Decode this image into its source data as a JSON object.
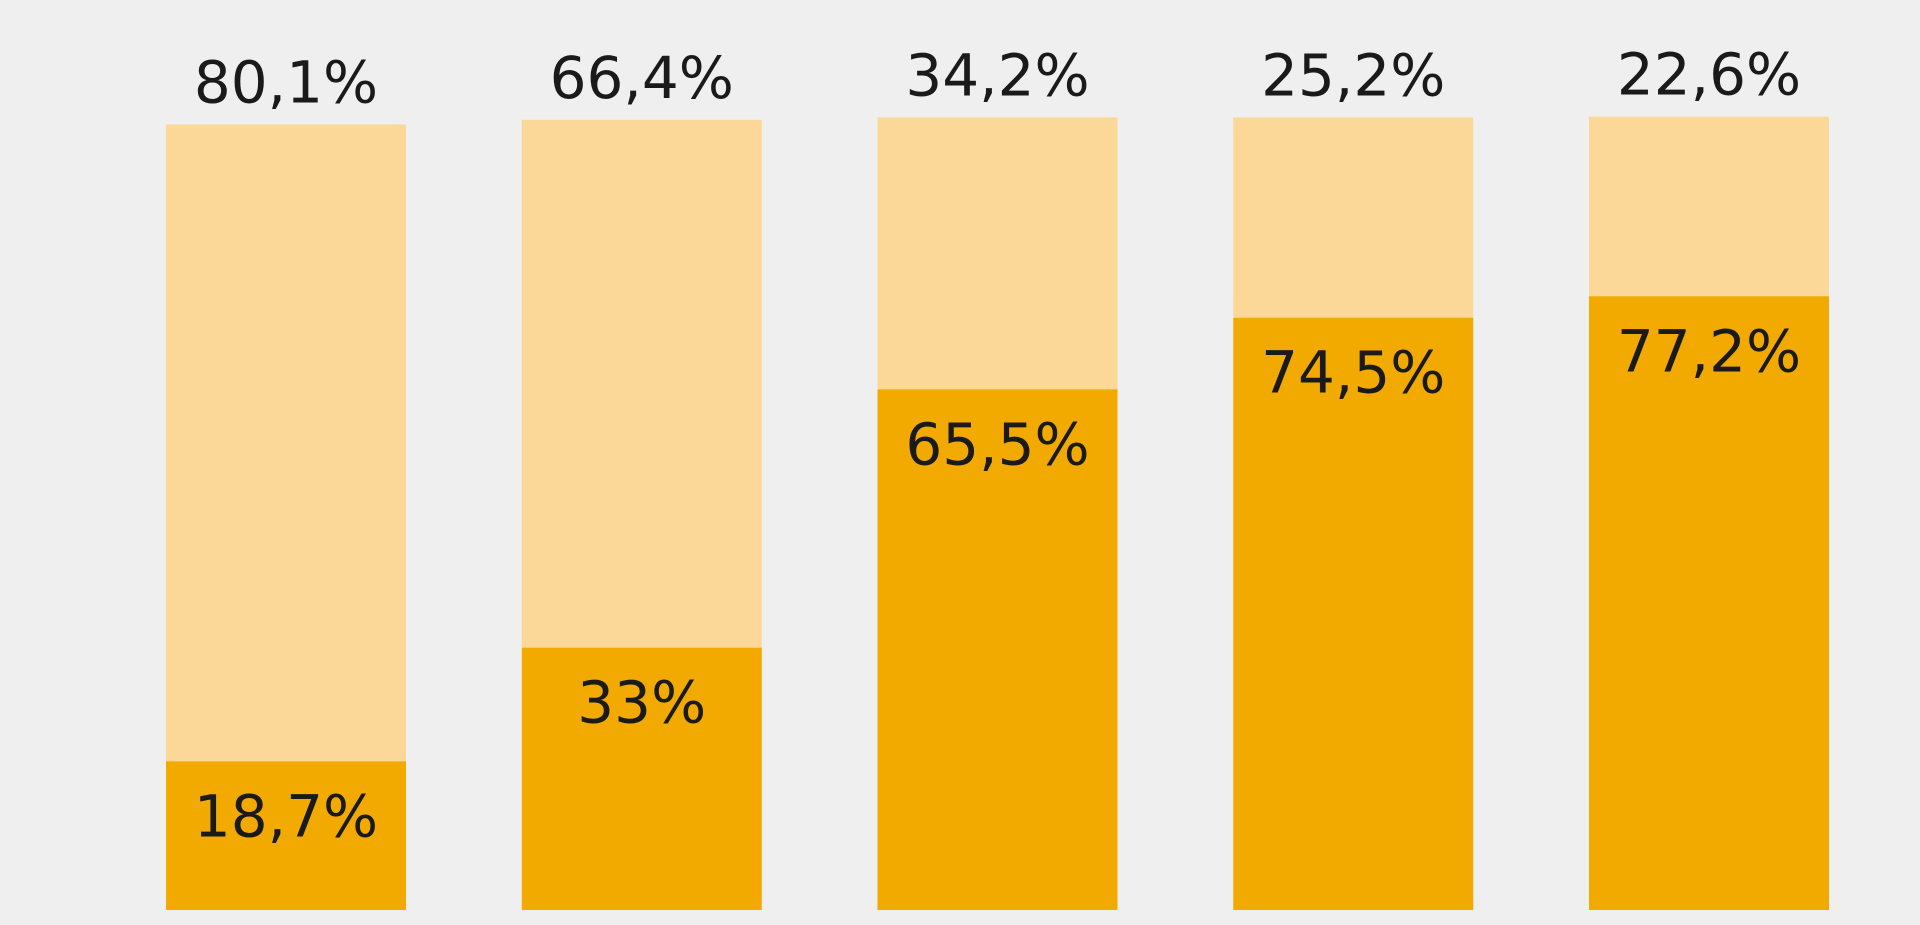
{
  "chart_data": {
    "type": "bar",
    "stacked": true,
    "percent_stacked": true,
    "categories": [
      "",
      "",
      "",
      "",
      ""
    ],
    "series": [
      {
        "values": [
          18.7,
          33,
          65.5,
          74.5,
          77.2
        ],
        "labels": [
          "18,7%",
          "33%",
          "65,5%",
          "74,5%",
          "77,2%"
        ],
        "color": "#f2aa00"
      },
      {
        "values": [
          80.1,
          66.4,
          34.2,
          25.2,
          22.6
        ],
        "labels": [
          "80,1%",
          "66,4%",
          "34,2%",
          "25,2%",
          "22,6%"
        ],
        "color": "#fbd898"
      }
    ],
    "background_color": "#efefef",
    "title": "",
    "xlabel": "",
    "ylabel": "",
    "legend": "none",
    "grid": false
  }
}
